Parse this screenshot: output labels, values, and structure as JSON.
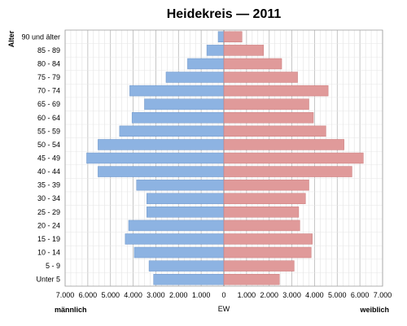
{
  "chart_data": {
    "type": "bar",
    "title": "Heidekreis — 2011",
    "ylabel": "Alter",
    "xlabel": "EW",
    "left_label": "männlich",
    "right_label": "weiblich",
    "xlim": [
      -7000,
      7000
    ],
    "x_ticks": [
      -7000,
      -6000,
      -5000,
      -4000,
      -3000,
      -2000,
      -1000,
      0,
      1000,
      2000,
      3000,
      4000,
      5000,
      6000,
      7000
    ],
    "x_tick_labels": [
      "7.000",
      "6.000",
      "5.000",
      "4.000",
      "3.000",
      "2.000",
      "1.000",
      "0",
      "1.000",
      "2.000",
      "3.000",
      "4.000",
      "5.000",
      "6.000",
      "7.000"
    ],
    "categories": [
      "90 und älter",
      "85 - 89",
      "80 - 84",
      "75 - 79",
      "70 - 74",
      "65 - 69",
      "60 - 64",
      "55 - 59",
      "50 - 54",
      "45 - 49",
      "40 - 44",
      "35 - 39",
      "30 - 34",
      "25 - 29",
      "20 - 24",
      "15 - 19",
      "10 - 14",
      "5 - 9",
      "Unter 5"
    ],
    "series": [
      {
        "name": "männlich",
        "color": "#8db3e2",
        "values": [
          250,
          750,
          1600,
          2550,
          4150,
          3500,
          4050,
          4600,
          5550,
          6050,
          5550,
          3850,
          3400,
          3400,
          4200,
          4350,
          3950,
          3300,
          3100
        ]
      },
      {
        "name": "weiblich",
        "color": "#e09a9a",
        "values": [
          800,
          1750,
          2550,
          3250,
          4600,
          3750,
          3950,
          4500,
          5300,
          6150,
          5650,
          3750,
          3600,
          3300,
          3350,
          3900,
          3850,
          3100,
          2450
        ]
      }
    ],
    "grid": true
  }
}
